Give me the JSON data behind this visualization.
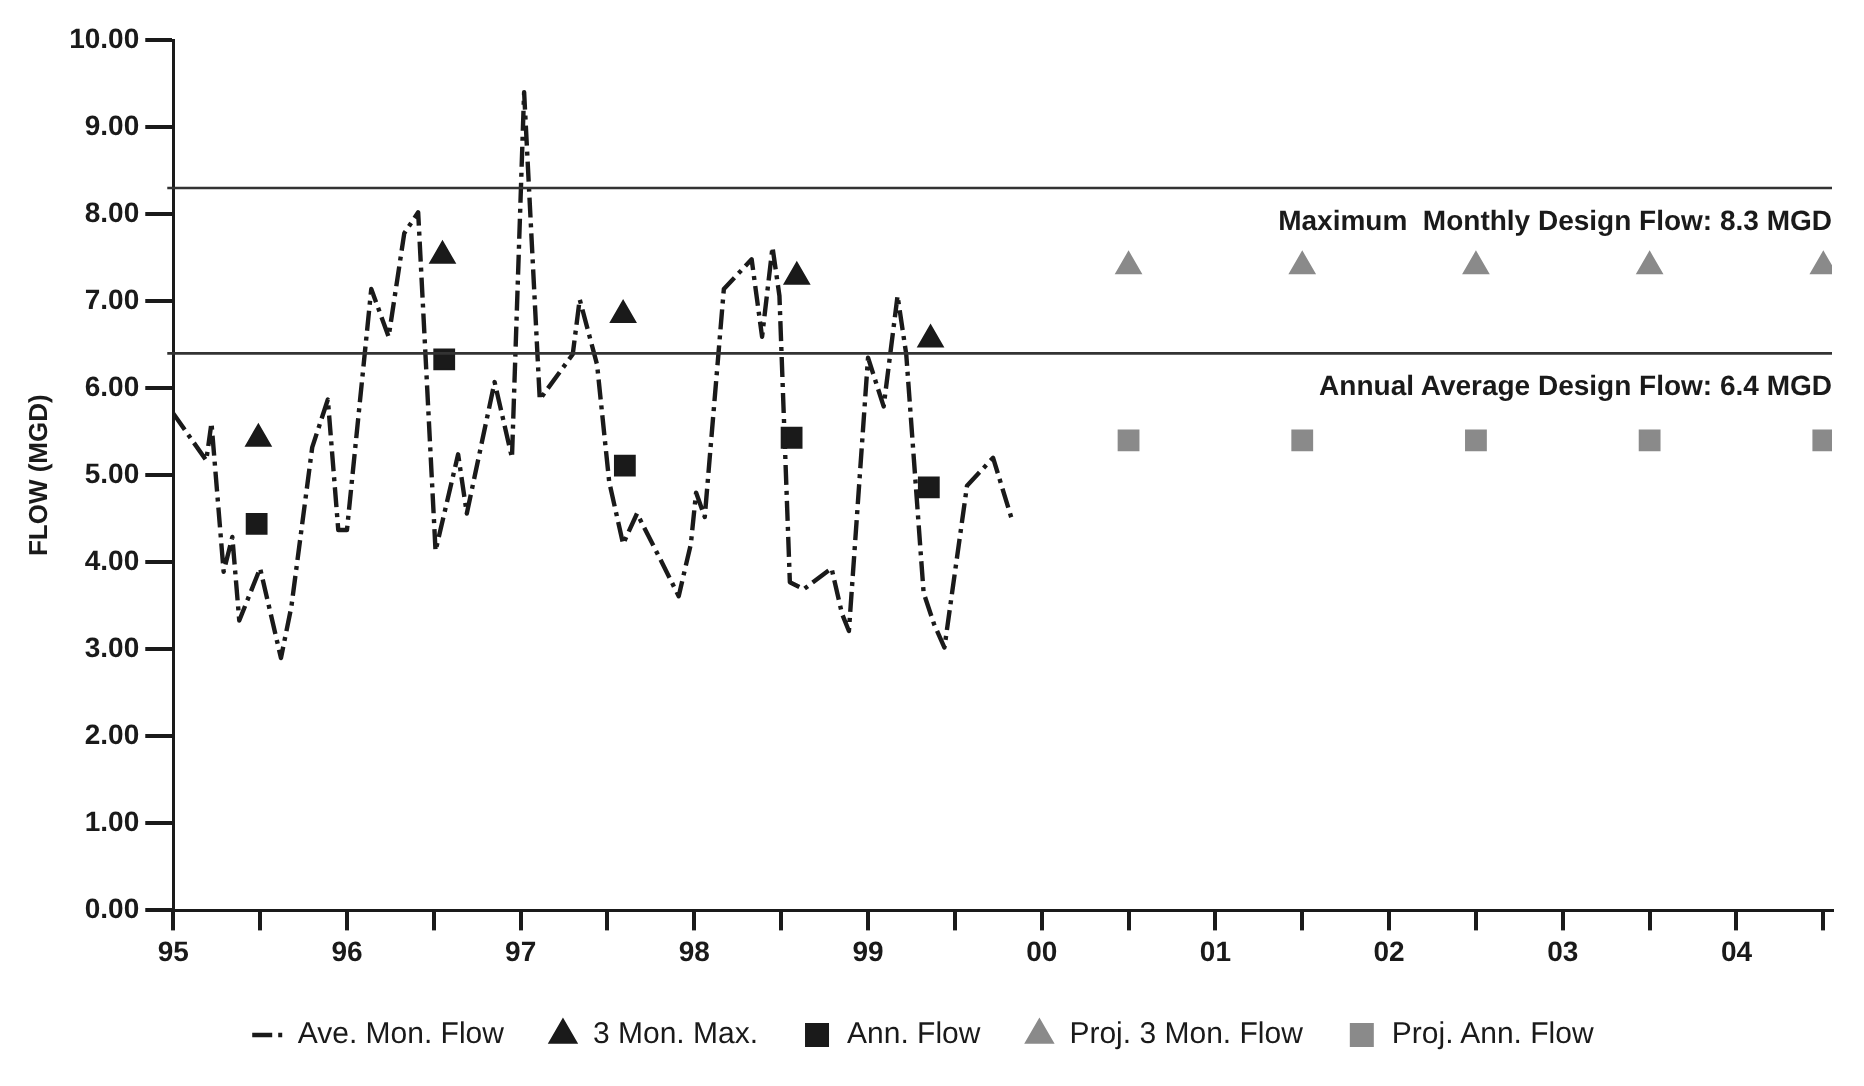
{
  "chart_data": {
    "type": "line",
    "ylabel": "FLOW (MGD)",
    "xlim": [
      1995,
      2004.55
    ],
    "xticks": [
      {
        "value": 1995,
        "label": "95"
      },
      {
        "value": 1995.5,
        "label": null
      },
      {
        "value": 1996,
        "label": "96"
      },
      {
        "value": 1996.5,
        "label": null
      },
      {
        "value": 1997,
        "label": "97"
      },
      {
        "value": 1997.5,
        "label": null
      },
      {
        "value": 1998,
        "label": "98"
      },
      {
        "value": 1998.5,
        "label": null
      },
      {
        "value": 1999,
        "label": "99"
      },
      {
        "value": 1999.5,
        "label": null
      },
      {
        "value": 2000,
        "label": "00"
      },
      {
        "value": 2000.5,
        "label": null
      },
      {
        "value": 2001,
        "label": "01"
      },
      {
        "value": 2001.5,
        "label": null
      },
      {
        "value": 2002,
        "label": "02"
      },
      {
        "value": 2002.5,
        "label": null
      },
      {
        "value": 2003,
        "label": "03"
      },
      {
        "value": 2003.5,
        "label": null
      },
      {
        "value": 2004,
        "label": "04"
      },
      {
        "value": 2004.5,
        "label": null
      }
    ],
    "ylim": [
      0,
      10
    ],
    "yticks": [
      {
        "value": 0,
        "label": "0.00"
      },
      {
        "value": 1,
        "label": "1.00"
      },
      {
        "value": 2,
        "label": "2.00"
      },
      {
        "value": 3,
        "label": "3.00"
      },
      {
        "value": 4,
        "label": "4.00"
      },
      {
        "value": 5,
        "label": "5.00"
      },
      {
        "value": 6,
        "label": "6.00"
      },
      {
        "value": 7,
        "label": "7.00"
      },
      {
        "value": 8,
        "label": "8.00"
      },
      {
        "value": 9,
        "label": "9.00"
      },
      {
        "value": 10,
        "label": "10.00"
      }
    ],
    "grid": false,
    "legend": "bottom",
    "series": [
      {
        "name": "Ave. Mon. Flow",
        "type": "line",
        "color": "#1a1a1a",
        "marker": "none",
        "line_style": "dashed",
        "x": [
          1995.0,
          1995.19,
          1995.22,
          1995.29,
          1995.34,
          1995.38,
          1995.5,
          1995.62,
          1995.68,
          1995.8,
          1995.89,
          1995.95,
          1996.0,
          1996.14,
          1996.24,
          1996.33,
          1996.41,
          1996.51,
          1996.64,
          1996.69,
          1996.85,
          1996.95,
          1997.02,
          1997.11,
          1997.3,
          1997.34,
          1997.44,
          1997.51,
          1997.59,
          1997.67,
          1997.8,
          1997.91,
          1997.98,
          1998.01,
          1998.06,
          1998.17,
          1998.33,
          1998.39,
          1998.45,
          1998.49,
          1998.55,
          1998.63,
          1998.79,
          1998.85,
          1998.89,
          1999.0,
          1999.09,
          1999.17,
          1999.22,
          1999.32,
          1999.38,
          1999.44,
          1999.57,
          1999.72,
          1999.83
        ],
        "values": [
          5.71,
          5.17,
          5.6,
          3.89,
          4.29,
          3.33,
          3.93,
          2.9,
          3.49,
          5.32,
          5.87,
          4.37,
          4.37,
          7.14,
          6.59,
          7.78,
          8.02,
          4.13,
          5.24,
          4.56,
          6.07,
          5.2,
          9.4,
          5.87,
          6.39,
          7.02,
          6.27,
          4.92,
          4.21,
          4.56,
          4.05,
          3.61,
          4.21,
          4.8,
          4.52,
          7.14,
          7.48,
          6.59,
          7.62,
          7.06,
          3.77,
          3.69,
          3.93,
          3.41,
          3.21,
          6.35,
          5.79,
          7.06,
          6.39,
          3.65,
          3.29,
          3.02,
          4.88,
          5.2,
          4.48
        ]
      },
      {
        "name": "3 Mon. Max.",
        "type": "scatter",
        "color": "#1a1a1a",
        "marker": "triangle",
        "x": [
          1995.49,
          1996.55,
          1997.59,
          1998.59,
          1999.36
        ],
        "values": [
          5.42,
          7.52,
          6.84,
          7.28,
          6.56
        ]
      },
      {
        "name": "Ann. Flow",
        "type": "scatter",
        "color": "#1a1a1a",
        "marker": "square",
        "x": [
          1995.48,
          1996.56,
          1997.6,
          1998.56,
          1999.35
        ],
        "values": [
          4.44,
          6.33,
          5.11,
          5.43,
          4.86
        ]
      },
      {
        "name": "Proj. 3 Mon. Flow",
        "type": "scatter",
        "color": "#8a8a8a",
        "marker": "triangle",
        "x": [
          2000.5,
          2001.5,
          2002.5,
          2003.5,
          2004.5
        ],
        "values": [
          7.4,
          7.4,
          7.4,
          7.4,
          7.4
        ]
      },
      {
        "name": "Proj. Ann. Flow",
        "type": "scatter",
        "color": "#8a8a8a",
        "marker": "square",
        "x": [
          2000.5,
          2001.5,
          2002.5,
          2003.5,
          2004.5
        ],
        "values": [
          5.4,
          5.4,
          5.4,
          5.4,
          5.4
        ]
      }
    ],
    "ref_lines": [
      {
        "axis": "y",
        "value": 8.3,
        "label": "Maximum  Monthly Design Flow: 8.3 MGD",
        "color": "#333333"
      },
      {
        "axis": "y",
        "value": 6.4,
        "label": "Annual Average Design Flow: 6.4 MGD",
        "color": "#333333"
      }
    ]
  }
}
